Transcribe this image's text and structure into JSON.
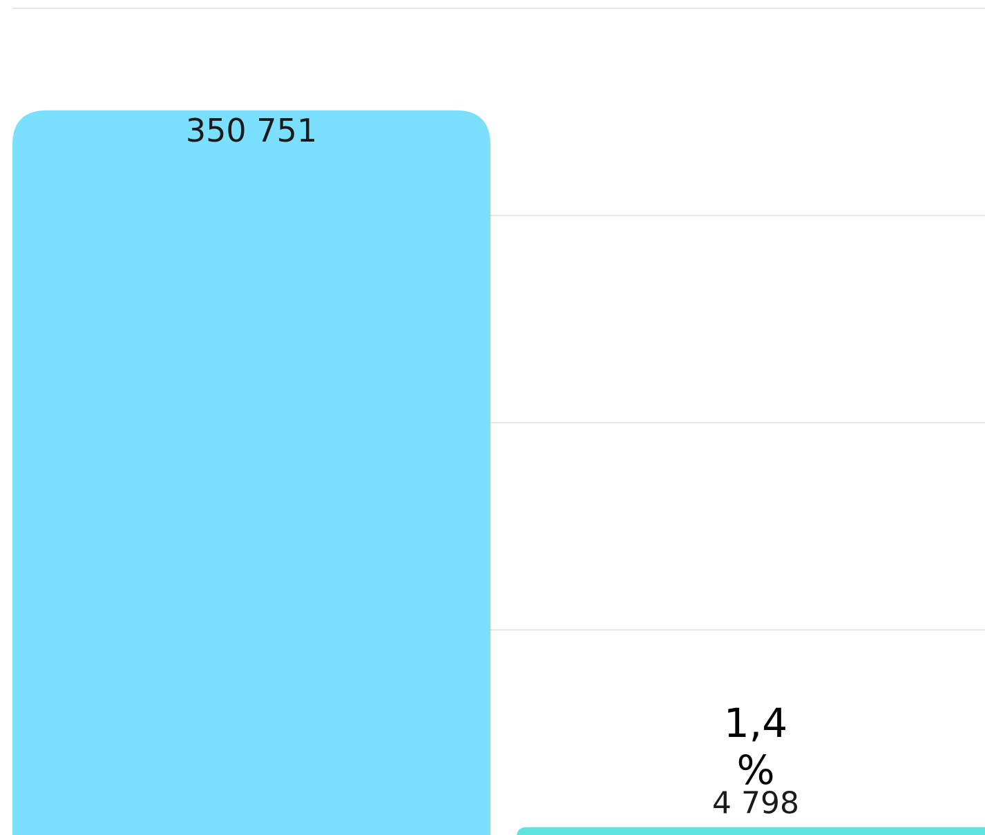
{
  "chart_data": {
    "type": "bar",
    "values": [
      350751,
      4798
    ],
    "value_labels": [
      "350 751",
      "4 798"
    ],
    "colors": [
      "#7be0ff",
      "#5fe3dd"
    ],
    "annotations": [
      "1,4 %"
    ],
    "ylim": [
      0,
      400000
    ],
    "yticks": [
      100000,
      200000,
      300000,
      400000
    ],
    "grid": true
  }
}
